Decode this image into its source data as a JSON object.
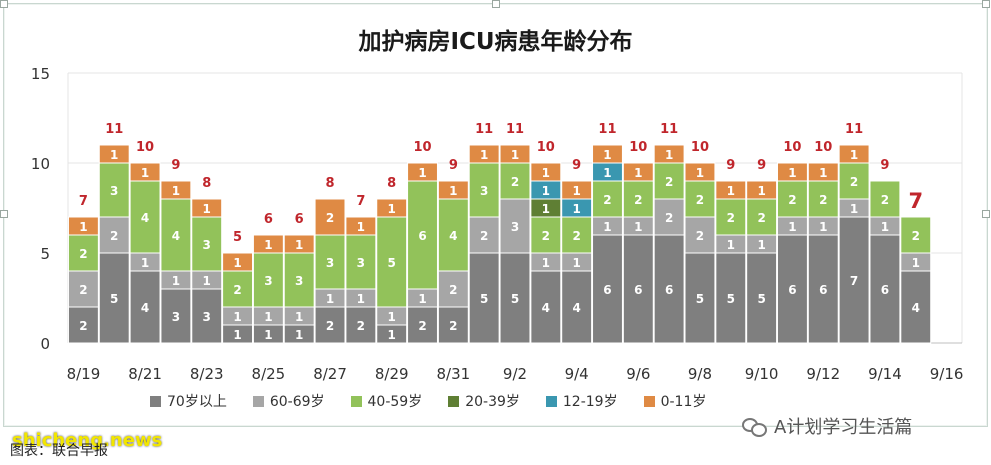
{
  "chart_data": {
    "type": "bar",
    "stacked": true,
    "title": "加护病房ICU病患年龄分布",
    "xlabel": "",
    "ylabel": "",
    "ylim": [
      0,
      15
    ],
    "yticks": [
      0,
      5,
      10,
      15
    ],
    "grid": true,
    "legend_position": "bottom",
    "categories": [
      "8/19",
      "8/20",
      "8/21",
      "8/22",
      "8/23",
      "8/24",
      "8/25",
      "8/26",
      "8/27",
      "8/28",
      "8/29",
      "8/30",
      "8/31",
      "9/1",
      "9/2",
      "9/3",
      "9/4",
      "9/5",
      "9/6",
      "9/7",
      "9/8",
      "9/9",
      "9/10",
      "9/11",
      "9/12",
      "9/13",
      "9/14",
      "9/15",
      "9/16"
    ],
    "tick_labels": [
      "8/19",
      "",
      "8/21",
      "",
      "8/23",
      "",
      "8/25",
      "",
      "8/27",
      "",
      "8/29",
      "",
      "8/31",
      "",
      "9/2",
      "",
      "9/4",
      "",
      "9/6",
      "",
      "9/8",
      "",
      "9/10",
      "",
      "9/12",
      "",
      "9/14",
      "",
      "9/16"
    ],
    "series": [
      {
        "name": "70岁以上",
        "color": "#7f7f7f",
        "values": [
          2,
          5,
          4,
          3,
          3,
          1,
          1,
          1,
          2,
          2,
          1,
          2,
          2,
          5,
          5,
          4,
          4,
          6,
          6,
          6,
          5,
          5,
          5,
          6,
          6,
          7,
          6,
          4,
          0
        ]
      },
      {
        "name": "60-69岁",
        "color": "#a6a6a6",
        "values": [
          2,
          2,
          1,
          1,
          1,
          1,
          1,
          1,
          1,
          1,
          1,
          1,
          2,
          2,
          3,
          1,
          1,
          1,
          1,
          2,
          2,
          1,
          1,
          1,
          1,
          1,
          1,
          1,
          0
        ]
      },
      {
        "name": "40-59岁",
        "color": "#92c25a",
        "values": [
          2,
          3,
          4,
          4,
          3,
          2,
          3,
          3,
          3,
          3,
          5,
          6,
          4,
          3,
          2,
          2,
          2,
          2,
          2,
          2,
          2,
          2,
          2,
          2,
          2,
          2,
          2,
          2,
          0
        ]
      },
      {
        "name": "20-39岁",
        "color": "#5f7f34",
        "values": [
          0,
          0,
          0,
          0,
          0,
          0,
          0,
          0,
          0,
          0,
          0,
          0,
          0,
          0,
          0,
          1,
          0,
          0,
          0,
          0,
          0,
          0,
          0,
          0,
          0,
          0,
          0,
          0,
          0
        ]
      },
      {
        "name": "12-19岁",
        "color": "#3a97b0",
        "values": [
          0,
          0,
          0,
          0,
          0,
          0,
          0,
          0,
          0,
          0,
          0,
          0,
          0,
          0,
          0,
          1,
          1,
          1,
          0,
          0,
          0,
          0,
          0,
          0,
          0,
          0,
          0,
          0,
          0
        ]
      },
      {
        "name": "0-11岁",
        "color": "#df8a44",
        "values": [
          1,
          1,
          1,
          1,
          1,
          1,
          1,
          1,
          2,
          1,
          1,
          1,
          1,
          1,
          1,
          1,
          1,
          1,
          1,
          1,
          1,
          1,
          1,
          1,
          1,
          1,
          0,
          0,
          0
        ]
      }
    ],
    "totals": [
      "7",
      "11",
      "10",
      "9",
      "8",
      "5",
      "6",
      "6",
      "8",
      "7",
      "8",
      "10",
      "9",
      "11",
      "11",
      "10",
      "9",
      "11",
      "10",
      "11",
      "10",
      "9",
      "9",
      "10",
      "10",
      "11",
      "9",
      "7",
      ""
    ],
    "label_color": "#c0262c"
  },
  "footer": {
    "credit": "图表：联合早报",
    "watermark_site": "shicheng.news",
    "watermark_account": "A计划学习生活篇"
  }
}
